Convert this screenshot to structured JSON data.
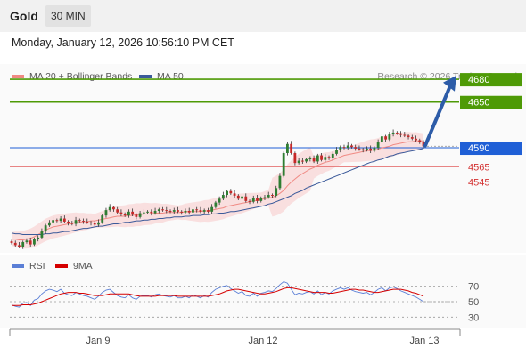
{
  "header": {
    "instrument": "Gold",
    "timeframe": "30 MIN"
  },
  "datetime": "Monday, January 12, 2026 10:56:10 PM CET",
  "legend": {
    "bollinger": "MA 20 + Bollinger Bands",
    "ma50": "MA 50",
    "copyright": "Research © 2026 Trading Central"
  },
  "rsi_legend": {
    "rsi": "RSI",
    "ma": "9MA"
  },
  "colors": {
    "resistance": "#4e9a06",
    "pivot": "#1f5fd6",
    "support": "#e57373",
    "ma20_band": "#f8c9c9",
    "ma50": "#3b5a9a",
    "candle_up": "#2e7d32",
    "candle_down": "#c62828",
    "rsi": "#5b7fd6",
    "rsi_ma": "#d50000"
  },
  "chart_data": {
    "type": "candlestick",
    "instrument": "Gold",
    "interval": "30 MIN",
    "x_labels": [
      "Jan 9",
      "Jan 12",
      "Jan 13"
    ],
    "ylim": [
      4452,
      4700
    ],
    "levels": [
      {
        "value": 4680,
        "label": "4680",
        "kind": "resistance"
      },
      {
        "value": 4650,
        "label": "4650",
        "kind": "resistance"
      },
      {
        "value": 4590,
        "label": "4590",
        "kind": "pivot"
      },
      {
        "value": 4565,
        "label": "4565",
        "kind": "support"
      },
      {
        "value": 4545,
        "label": "4545",
        "kind": "support"
      }
    ],
    "close": [
      4465,
      4462,
      4460,
      4466,
      4468,
      4463,
      4470,
      4472,
      4480,
      4488,
      4492,
      4495,
      4494,
      4497,
      4493,
      4491,
      4490,
      4495,
      4494,
      4493,
      4492,
      4491,
      4489,
      4492,
      4501,
      4508,
      4512,
      4509,
      4505,
      4503,
      4501,
      4506,
      4502,
      4499,
      4504,
      4505,
      4506,
      4504,
      4507,
      4509,
      4508,
      4507,
      4506,
      4508,
      4506,
      4505,
      4507,
      4505,
      4509,
      4508,
      4506,
      4508,
      4506,
      4512,
      4518,
      4523,
      4528,
      4533,
      4530,
      4527,
      4523,
      4526,
      4520,
      4519,
      4524,
      4520,
      4524,
      4525,
      4528,
      4527,
      4537,
      4553,
      4583,
      4595,
      4583,
      4570,
      4573,
      4572,
      4575,
      4576,
      4572,
      4580,
      4574,
      4578,
      4576,
      4582,
      4587,
      4591,
      4590,
      4593,
      4591,
      4589,
      4588,
      4587,
      4589,
      4586,
      4590,
      4598,
      4605,
      4601,
      4608,
      4610,
      4609,
      4607,
      4606,
      4604,
      4602,
      4600,
      4597,
      4592
    ],
    "ma20": [
      4470,
      4470,
      4469,
      4469,
      4470,
      4471,
      4473,
      4476,
      4479,
      4482,
      4484,
      4486,
      4487,
      4488,
      4489,
      4490,
      4491,
      4492,
      4492,
      4493,
      4493,
      4494,
      4494,
      4495,
      4496,
      4497,
      4498,
      4499,
      4500,
      4500,
      4500,
      4501,
      4501,
      4502,
      4502,
      4503,
      4503,
      4503,
      4504,
      4504,
      4504,
      4505,
      4505,
      4505,
      4505,
      4505,
      4506,
      4506,
      4506,
      4506,
      4506,
      4507,
      4507,
      4508,
      4509,
      4510,
      4511,
      4513,
      4514,
      4515,
      4516,
      4517,
      4518,
      4519,
      4520,
      4521,
      4522,
      4523,
      4524,
      4525,
      4527,
      4530,
      4534,
      4540,
      4545,
      4549,
      4553,
      4556,
      4559,
      4562,
      4564,
      4567,
      4569,
      4571,
      4572,
      4574,
      4576,
      4578,
      4580,
      4581,
      4582,
      4583,
      4584,
      4585,
      4586,
      4587,
      4587,
      4588,
      4590,
      4591,
      4592,
      4594,
      4595,
      4596,
      4597,
      4598,
      4598,
      4599,
      4599,
      4599
    ],
    "ma50": [
      4478,
      4477,
      4477,
      4476,
      4476,
      4476,
      4476,
      4476,
      4476,
      4477,
      4477,
      4478,
      4478,
      4479,
      4480,
      4480,
      4481,
      4482,
      4483,
      4484,
      4484,
      4485,
      4486,
      4487,
      4487,
      4488,
      4489,
      4490,
      4490,
      4491,
      4492,
      4492,
      4493,
      4494,
      4494,
      4495,
      4495,
      4496,
      4496,
      4497,
      4497,
      4498,
      4498,
      4499,
      4499,
      4499,
      4500,
      4500,
      4501,
      4501,
      4501,
      4502,
      4502,
      4503,
      4503,
      4504,
      4504,
      4505,
      4506,
      4506,
      4507,
      4508,
      4509,
      4510,
      4511,
      4512,
      4513,
      4514,
      4516,
      4517,
      4519,
      4521,
      4523,
      4525,
      4527,
      4530,
      4532,
      4534,
      4537,
      4539,
      4541,
      4543,
      4545,
      4547,
      4549,
      4551,
      4553,
      4555,
      4557,
      4559,
      4561,
      4563,
      4565,
      4567,
      4569,
      4571,
      4572,
      4574,
      4575,
      4577,
      4579,
      4580,
      4582,
      4583,
      4584,
      4585,
      4586,
      4587,
      4588,
      4589
    ],
    "rsi": {
      "levels": [
        70,
        50,
        30
      ],
      "ylim": [
        20,
        80
      ],
      "rsi": [
        46,
        44,
        43,
        48,
        49,
        45,
        52,
        54,
        60,
        64,
        66,
        65,
        63,
        66,
        61,
        59,
        58,
        62,
        60,
        58,
        57,
        55,
        53,
        57,
        62,
        65,
        66,
        62,
        58,
        56,
        55,
        59,
        55,
        53,
        57,
        58,
        58,
        56,
        59,
        60,
        58,
        57,
        56,
        58,
        55,
        55,
        57,
        55,
        59,
        57,
        55,
        58,
        56,
        62,
        66,
        68,
        70,
        71,
        67,
        64,
        61,
        63,
        58,
        57,
        61,
        57,
        61,
        62,
        64,
        63,
        67,
        72,
        76,
        74,
        66,
        59,
        61,
        60,
        62,
        63,
        60,
        64,
        59,
        62,
        60,
        64,
        66,
        68,
        66,
        68,
        65,
        63,
        62,
        61,
        62,
        59,
        62,
        66,
        68,
        64,
        68,
        69,
        67,
        64,
        62,
        60,
        58,
        56,
        53,
        50
      ],
      "ma": [
        45,
        45,
        45,
        46,
        46,
        46,
        47,
        48,
        50,
        52,
        54,
        56,
        58,
        60,
        61,
        62,
        62,
        62,
        61,
        61,
        60,
        59,
        58,
        58,
        58,
        59,
        60,
        60,
        60,
        60,
        60,
        60,
        59,
        58,
        57,
        57,
        57,
        57,
        57,
        58,
        58,
        58,
        58,
        58,
        57,
        57,
        57,
        57,
        57,
        57,
        57,
        57,
        57,
        58,
        59,
        60,
        62,
        64,
        65,
        66,
        66,
        65,
        64,
        63,
        62,
        61,
        60,
        60,
        61,
        62,
        63,
        65,
        67,
        68,
        68,
        67,
        66,
        65,
        64,
        63,
        62,
        62,
        62,
        62,
        61,
        61,
        62,
        63,
        64,
        65,
        66,
        66,
        65,
        65,
        64,
        63,
        62,
        62,
        63,
        64,
        65,
        66,
        66,
        66,
        65,
        64,
        62,
        61,
        59,
        57
      ]
    }
  }
}
